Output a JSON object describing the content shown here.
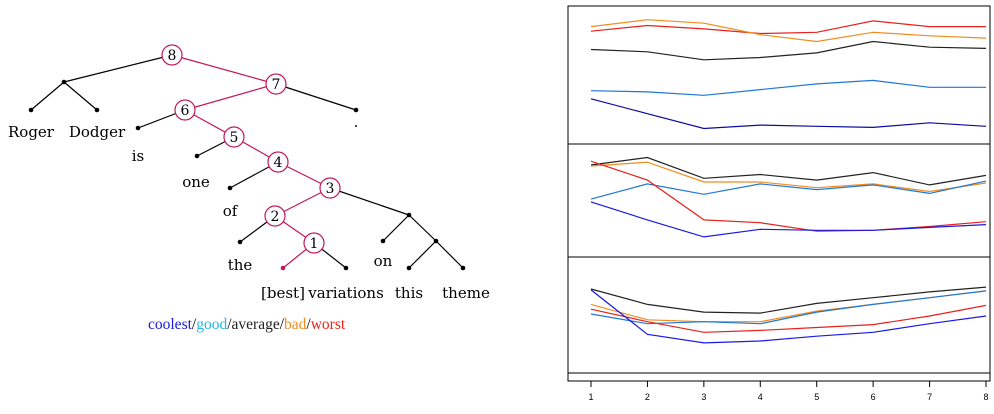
{
  "tree": {
    "words": [
      "Roger",
      "Dodger",
      "is",
      "one",
      "of",
      "the",
      "[best]",
      "variations",
      "this",
      "theme",
      "on",
      "."
    ],
    "node_labels": [
      "8",
      "7",
      "6",
      "5",
      "4",
      "3",
      "2",
      "1"
    ]
  },
  "legend": {
    "items": [
      {
        "label": "coolest",
        "color": "#1a1ae6"
      },
      {
        "label": "good",
        "color": "#29b6e8"
      },
      {
        "label": "average",
        "color": "#222222"
      },
      {
        "label": "bad",
        "color": "#f28c1e"
      },
      {
        "label": "worst",
        "color": "#e8211d"
      }
    ],
    "separator": "/"
  },
  "colors": {
    "highlight": "#c2185b",
    "frame": "#000000"
  },
  "chart_data": {
    "type": "line",
    "x": [
      1,
      2,
      3,
      4,
      5,
      6,
      7,
      8
    ],
    "panels": [
      {
        "series": [
          {
            "color": "#e8211d",
            "values": [
              9.5,
              10.0,
              9.7,
              9.3,
              9.4,
              10.4,
              9.9,
              9.9
            ]
          },
          {
            "color": "#f28c1e",
            "values": [
              9.9,
              10.5,
              10.2,
              9.2,
              8.6,
              9.4,
              9.1,
              8.9
            ]
          },
          {
            "color": "#222222",
            "values": [
              7.9,
              7.7,
              7.0,
              7.2,
              7.6,
              8.6,
              8.1,
              8.0
            ]
          },
          {
            "color": "#1f77d6",
            "values": [
              4.3,
              4.2,
              3.9,
              4.4,
              4.9,
              5.2,
              4.6,
              4.6
            ]
          },
          {
            "color": "#0a0aa0",
            "values": [
              3.6,
              2.3,
              1.0,
              1.3,
              1.2,
              1.1,
              1.5,
              1.2
            ]
          }
        ]
      },
      {
        "series": [
          {
            "color": "#222222",
            "values": [
              9.2,
              10.0,
              7.8,
              8.2,
              7.6,
              8.4,
              7.1,
              8.1
            ]
          },
          {
            "color": "#f28c1e",
            "values": [
              9.1,
              9.5,
              7.4,
              7.4,
              6.8,
              7.2,
              6.4,
              7.3
            ]
          },
          {
            "color": "#1f77d6",
            "values": [
              5.6,
              7.2,
              6.1,
              7.2,
              6.6,
              7.1,
              6.2,
              7.5
            ]
          },
          {
            "color": "#e8211d",
            "values": [
              9.6,
              7.6,
              3.4,
              3.1,
              2.2,
              2.3,
              2.7,
              3.2
            ]
          },
          {
            "color": "#1a1ae6",
            "values": [
              5.3,
              3.4,
              1.6,
              2.4,
              2.3,
              2.3,
              2.6,
              2.9
            ]
          }
        ]
      },
      {
        "series": [
          {
            "color": "#222222",
            "values": [
              8.2,
              6.6,
              5.8,
              5.7,
              6.7,
              7.3,
              7.9,
              8.4
            ]
          },
          {
            "color": "#f28c1e",
            "values": [
              6.6,
              5.0,
              4.8,
              4.8,
              5.9,
              6.6,
              7.3,
              8.0
            ]
          },
          {
            "color": "#1f77d6",
            "values": [
              5.6,
              4.6,
              4.8,
              4.6,
              5.8,
              6.6,
              7.3,
              8.0
            ]
          },
          {
            "color": "#e8211d",
            "values": [
              6.1,
              4.8,
              3.7,
              3.9,
              4.2,
              4.5,
              5.4,
              6.5
            ]
          },
          {
            "color": "#1a1ae6",
            "values": [
              8.1,
              3.5,
              2.6,
              2.8,
              3.3,
              3.7,
              4.6,
              5.4
            ]
          }
        ]
      }
    ]
  }
}
